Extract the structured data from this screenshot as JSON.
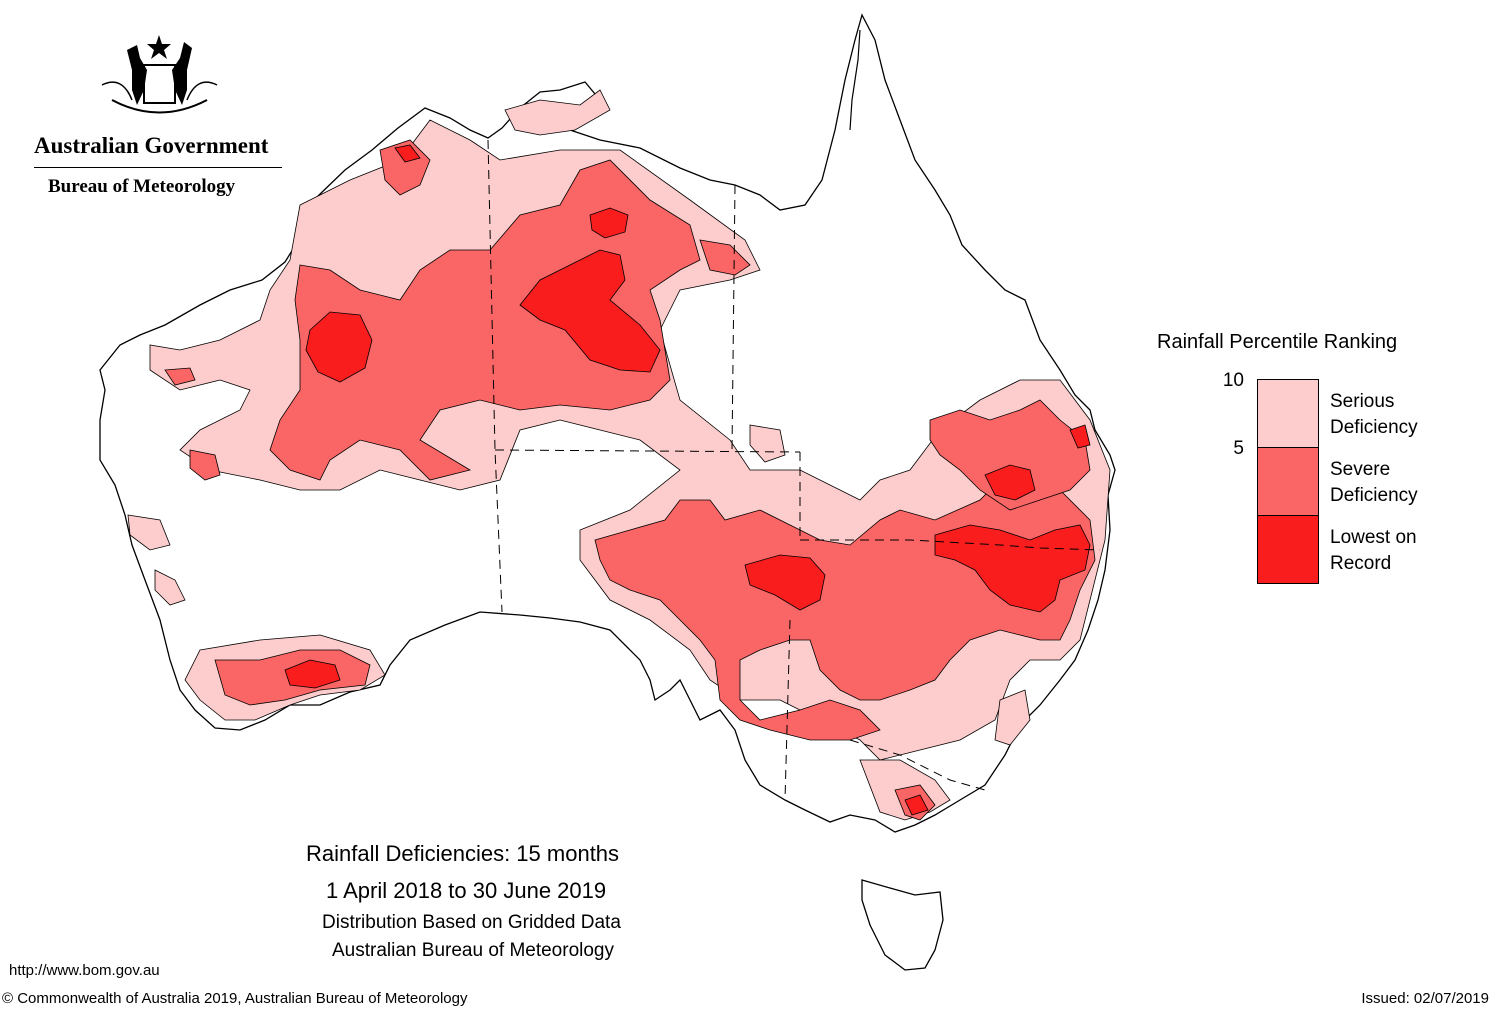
{
  "branding": {
    "government": "Australian Government",
    "bureau": "Bureau of Meteorology"
  },
  "legend": {
    "title": "Rainfall Percentile Ranking",
    "ticks": [
      "10",
      "5"
    ],
    "classes": [
      {
        "label_line1": "Serious",
        "label_line2": "Deficiency",
        "color": "#fdcccc"
      },
      {
        "label_line1": "Severe",
        "label_line2": "Deficiency",
        "color": "#fa6565"
      },
      {
        "label_line1": "Lowest on",
        "label_line2": "Record",
        "color": "#f91d1d"
      }
    ]
  },
  "map_title": {
    "line1": "Rainfall Deficiencies: 15 months",
    "line2": "1 April 2018 to 30 June 2019",
    "line3": "Distribution Based on Gridded Data",
    "line4": "Australian Bureau of Meteorology"
  },
  "footer": {
    "url": "http://www.bom.gov.au",
    "copyright": "© Commonwealth of Australia 2019, Australian Bureau of Meteorology",
    "issued": "Issued: 02/07/2019"
  }
}
